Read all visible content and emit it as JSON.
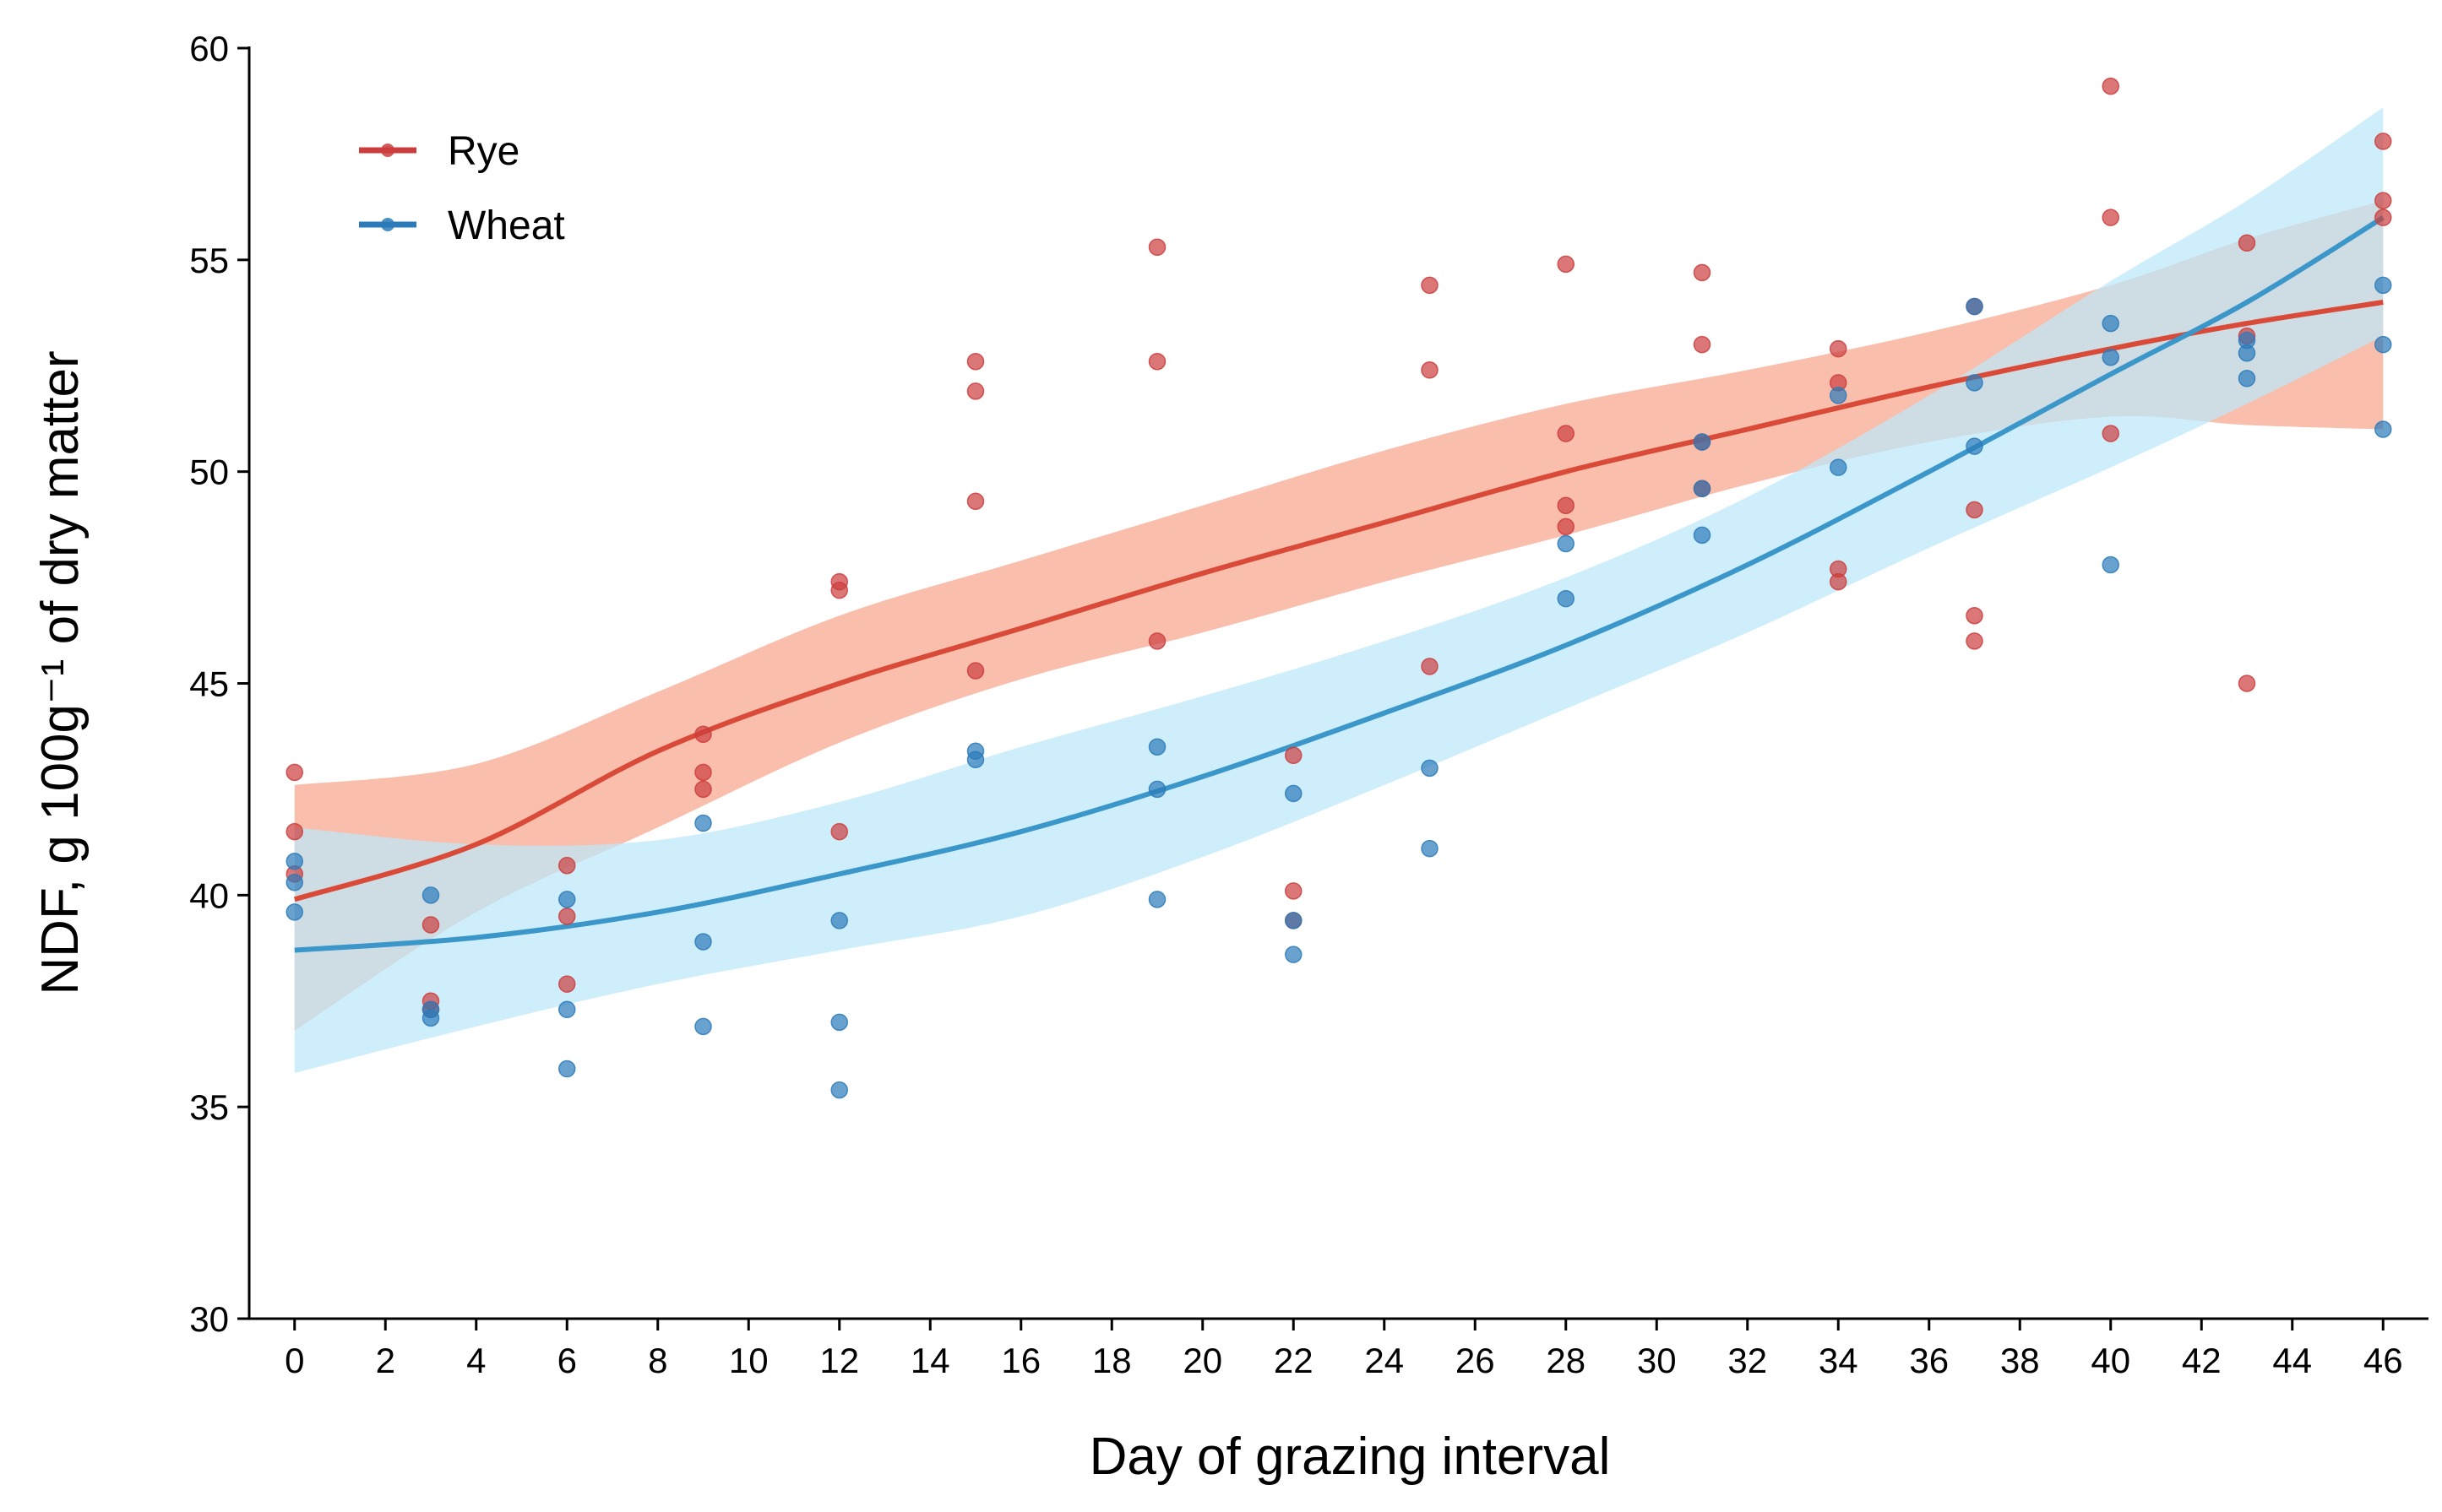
{
  "chart_data": {
    "type": "scatter",
    "xlabel": "Day of grazing interval",
    "ylabel": "NDF, g 100g⁻¹ of dry matter",
    "xlim": [
      -1,
      47
    ],
    "ylim": [
      30,
      60
    ],
    "x_ticks": [
      0,
      2,
      4,
      6,
      8,
      10,
      12,
      14,
      16,
      18,
      20,
      22,
      24,
      26,
      28,
      30,
      32,
      34,
      36,
      38,
      40,
      42,
      44,
      46
    ],
    "y_ticks": [
      30,
      35,
      40,
      45,
      50,
      55,
      60
    ],
    "grid": false,
    "legend_position": "top-left",
    "series": [
      {
        "name": "Rye",
        "color": "#cc3d3d",
        "line_color": "#d94a38",
        "band_color": "#f8a58e",
        "points": [
          [
            0,
            42.9
          ],
          [
            0,
            41.5
          ],
          [
            0,
            40.5
          ],
          [
            3,
            39.3
          ],
          [
            3,
            37.5
          ],
          [
            3,
            37.3
          ],
          [
            6,
            40.7
          ],
          [
            6,
            39.5
          ],
          [
            6,
            37.9
          ],
          [
            9,
            43.8
          ],
          [
            9,
            42.9
          ],
          [
            9,
            42.5
          ],
          [
            12,
            47.4
          ],
          [
            12,
            47.2
          ],
          [
            12,
            41.5
          ],
          [
            15,
            52.6
          ],
          [
            15,
            51.9
          ],
          [
            15,
            49.3
          ],
          [
            15,
            45.3
          ],
          [
            19,
            55.3
          ],
          [
            19,
            52.6
          ],
          [
            19,
            46.0
          ],
          [
            22,
            43.3
          ],
          [
            22,
            40.1
          ],
          [
            22,
            39.4
          ],
          [
            25,
            54.4
          ],
          [
            25,
            52.4
          ],
          [
            25,
            45.4
          ],
          [
            28,
            54.9
          ],
          [
            28,
            50.9
          ],
          [
            28,
            49.2
          ],
          [
            28,
            48.7
          ],
          [
            31,
            54.7
          ],
          [
            31,
            53.0
          ],
          [
            31,
            50.7
          ],
          [
            31,
            49.6
          ],
          [
            34,
            52.9
          ],
          [
            34,
            52.1
          ],
          [
            34,
            47.7
          ],
          [
            34,
            47.4
          ],
          [
            37,
            53.9
          ],
          [
            37,
            49.1
          ],
          [
            37,
            46.6
          ],
          [
            37,
            46.0
          ],
          [
            40,
            59.1
          ],
          [
            40,
            56.0
          ],
          [
            40,
            50.9
          ],
          [
            43,
            55.4
          ],
          [
            43,
            53.2
          ],
          [
            43,
            45.0
          ],
          [
            46,
            57.8
          ],
          [
            46,
            56.4
          ],
          [
            46,
            56.0
          ]
        ],
        "fit": [
          [
            0,
            39.9
          ],
          [
            4,
            41.2
          ],
          [
            8,
            43.4
          ],
          [
            12,
            45.0
          ],
          [
            16,
            46.3
          ],
          [
            20,
            47.6
          ],
          [
            24,
            48.8
          ],
          [
            28,
            50.0
          ],
          [
            32,
            51.0
          ],
          [
            36,
            52.0
          ],
          [
            40,
            52.9
          ],
          [
            43,
            53.5
          ],
          [
            46,
            54.0
          ]
        ],
        "band_lower": [
          [
            0,
            36.8
          ],
          [
            4,
            39.6
          ],
          [
            8,
            41.6
          ],
          [
            12,
            43.6
          ],
          [
            16,
            45.1
          ],
          [
            20,
            46.2
          ],
          [
            24,
            47.4
          ],
          [
            28,
            48.5
          ],
          [
            32,
            49.7
          ],
          [
            36,
            50.7
          ],
          [
            40,
            51.3
          ],
          [
            43,
            51.1
          ],
          [
            46,
            51.0
          ]
        ],
        "band_upper": [
          [
            0,
            42.6
          ],
          [
            4,
            43.1
          ],
          [
            8,
            44.8
          ],
          [
            12,
            46.6
          ],
          [
            16,
            47.9
          ],
          [
            20,
            49.2
          ],
          [
            24,
            50.5
          ],
          [
            28,
            51.6
          ],
          [
            32,
            52.4
          ],
          [
            36,
            53.3
          ],
          [
            40,
            54.4
          ],
          [
            43,
            55.5
          ],
          [
            46,
            56.4
          ]
        ]
      },
      {
        "name": "Wheat",
        "color": "#2b7bba",
        "line_color": "#3b97c9",
        "band_color": "#bde8fa",
        "points": [
          [
            0,
            40.8
          ],
          [
            0,
            40.3
          ],
          [
            0,
            39.6
          ],
          [
            3,
            40.0
          ],
          [
            3,
            37.3
          ],
          [
            3,
            37.1
          ],
          [
            6,
            39.9
          ],
          [
            6,
            37.3
          ],
          [
            6,
            35.9
          ],
          [
            9,
            41.7
          ],
          [
            9,
            38.9
          ],
          [
            9,
            36.9
          ],
          [
            12,
            39.4
          ],
          [
            12,
            37.0
          ],
          [
            12,
            35.4
          ],
          [
            15,
            43.4
          ],
          [
            15,
            43.2
          ],
          [
            19,
            43.5
          ],
          [
            19,
            42.5
          ],
          [
            19,
            39.9
          ],
          [
            22,
            42.4
          ],
          [
            22,
            39.4
          ],
          [
            22,
            38.6
          ],
          [
            25,
            43.0
          ],
          [
            25,
            41.1
          ],
          [
            28,
            48.3
          ],
          [
            28,
            47.0
          ],
          [
            31,
            50.7
          ],
          [
            31,
            49.6
          ],
          [
            31,
            48.5
          ],
          [
            34,
            51.8
          ],
          [
            34,
            50.1
          ],
          [
            37,
            53.9
          ],
          [
            37,
            52.1
          ],
          [
            37,
            50.6
          ],
          [
            40,
            53.5
          ],
          [
            40,
            52.7
          ],
          [
            40,
            47.8
          ],
          [
            43,
            53.1
          ],
          [
            43,
            52.8
          ],
          [
            43,
            52.2
          ],
          [
            46,
            54.4
          ],
          [
            46,
            53.0
          ],
          [
            46,
            51.0
          ]
        ],
        "fit": [
          [
            0,
            38.7
          ],
          [
            4,
            39.0
          ],
          [
            8,
            39.6
          ],
          [
            12,
            40.5
          ],
          [
            16,
            41.5
          ],
          [
            20,
            42.8
          ],
          [
            24,
            44.3
          ],
          [
            28,
            45.9
          ],
          [
            32,
            47.8
          ],
          [
            36,
            50.0
          ],
          [
            40,
            52.3
          ],
          [
            43,
            54.0
          ],
          [
            46,
            56.0
          ]
        ],
        "band_lower": [
          [
            0,
            35.8
          ],
          [
            4,
            36.9
          ],
          [
            8,
            37.9
          ],
          [
            12,
            38.7
          ],
          [
            16,
            39.5
          ],
          [
            20,
            40.9
          ],
          [
            24,
            42.6
          ],
          [
            28,
            44.4
          ],
          [
            32,
            46.2
          ],
          [
            36,
            48.2
          ],
          [
            40,
            50.1
          ],
          [
            43,
            51.6
          ],
          [
            46,
            53.2
          ]
        ],
        "band_upper": [
          [
            0,
            41.6
          ],
          [
            4,
            41.2
          ],
          [
            8,
            41.3
          ],
          [
            12,
            42.2
          ],
          [
            16,
            43.5
          ],
          [
            20,
            44.7
          ],
          [
            24,
            46.0
          ],
          [
            28,
            47.5
          ],
          [
            32,
            49.4
          ],
          [
            36,
            51.8
          ],
          [
            40,
            54.5
          ],
          [
            43,
            56.4
          ],
          [
            46,
            58.6
          ]
        ]
      }
    ]
  }
}
